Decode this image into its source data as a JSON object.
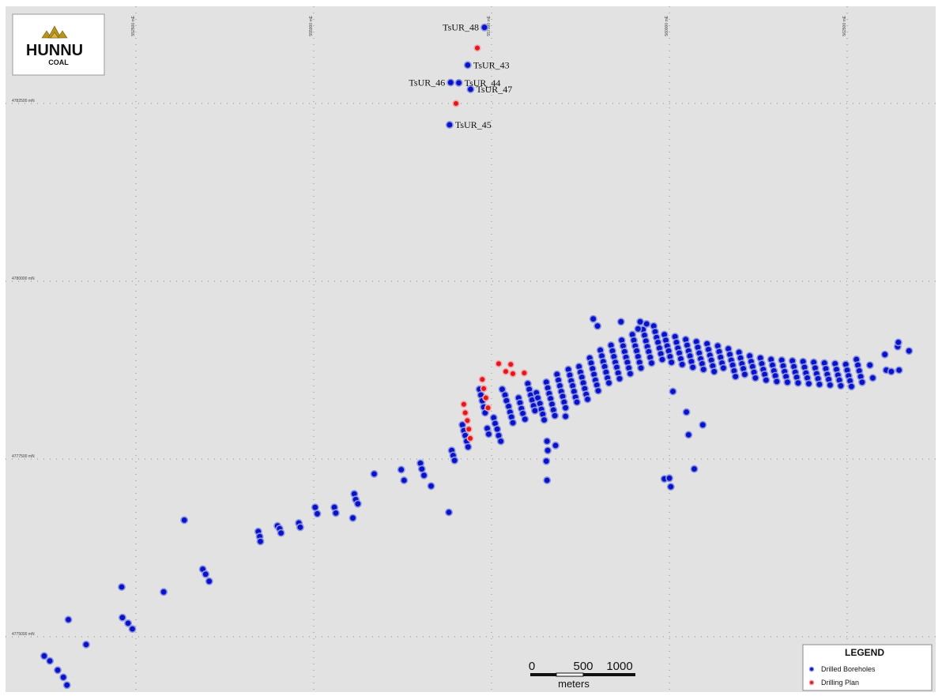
{
  "logo": {
    "word": "HUNNU",
    "sub": "COAL"
  },
  "grid": {
    "eastings": [
      "552500 mE",
      "555000 mE",
      "557500 mE",
      "560000 mE",
      "562500 mE"
    ],
    "northings": [
      "4782500 mN",
      "4780000 mN",
      "4777500 mN",
      "4775000 mN"
    ]
  },
  "labels": [
    {
      "text": "TsUR_48",
      "side": "left",
      "e": 557400,
      "n": 4783570
    },
    {
      "text": "TsUR_43",
      "side": "right",
      "e": 557165,
      "n": 4783040
    },
    {
      "text": "TsUR_44",
      "side": "right",
      "e": 557040,
      "n": 4782790
    },
    {
      "text": "TsUR_46",
      "side": "left",
      "e": 556925,
      "n": 4782795
    },
    {
      "text": "TsUR_47",
      "side": "right",
      "e": 557205,
      "n": 4782700
    },
    {
      "text": "TsUR_45",
      "side": "right",
      "e": 556910,
      "n": 4782200
    }
  ],
  "scale_bar": {
    "ticks": [
      "0",
      "500",
      "1000"
    ],
    "unit": "meters"
  },
  "legend": {
    "title": "LEGEND",
    "items": [
      {
        "label": "Drilled Boreholes",
        "color": "#0a12c8"
      },
      {
        "label": "Drilling Plan",
        "color": "#e0181e"
      }
    ]
  },
  "colors": {
    "drilled": "#0a12c8",
    "planned": "#e0181e",
    "background": "#e2e2e2",
    "halo": "#7a84d8"
  },
  "boreholes": {
    "drilled": [
      [
        557400,
        4783570
      ],
      [
        557165,
        4783040
      ],
      [
        557040,
        4782790
      ],
      [
        556925,
        4782795
      ],
      [
        557205,
        4782700
      ],
      [
        556910,
        4782200
      ],
      [
        551210,
        4774730
      ],
      [
        551290,
        4774660
      ],
      [
        551400,
        4774530
      ],
      [
        551480,
        4774430
      ],
      [
        551530,
        4774320
      ],
      [
        551550,
        4775240
      ],
      [
        551800,
        4774890
      ],
      [
        552300,
        4775700
      ],
      [
        552310,
        4775270
      ],
      [
        552390,
        4775190
      ],
      [
        552450,
        4775110
      ],
      [
        552890,
        4775630
      ],
      [
        553180,
        4776640
      ],
      [
        553440,
        4775950
      ],
      [
        553480,
        4775880
      ],
      [
        553530,
        4775780
      ],
      [
        554220,
        4776480
      ],
      [
        554240,
        4776410
      ],
      [
        554250,
        4776340
      ],
      [
        554490,
        4776560
      ],
      [
        554520,
        4776520
      ],
      [
        554540,
        4776460
      ],
      [
        554790,
        4776600
      ],
      [
        554810,
        4776540
      ],
      [
        555020,
        4776820
      ],
      [
        555050,
        4776730
      ],
      [
        555290,
        4776820
      ],
      [
        555310,
        4776740
      ],
      [
        555550,
        4776670
      ],
      [
        555570,
        4777010
      ],
      [
        555590,
        4776930
      ],
      [
        555620,
        4776870
      ],
      [
        555850,
        4777290
      ],
      [
        556230,
        4777350
      ],
      [
        556270,
        4777200
      ],
      [
        556500,
        4777440
      ],
      [
        556520,
        4777360
      ],
      [
        556550,
        4777270
      ],
      [
        556650,
        4777120
      ],
      [
        556900,
        4776750
      ],
      [
        556940,
        4777620
      ],
      [
        556960,
        4777550
      ],
      [
        556980,
        4777480
      ],
      [
        557090,
        4777980
      ],
      [
        557110,
        4777900
      ],
      [
        557130,
        4777830
      ],
      [
        557150,
        4777750
      ],
      [
        557170,
        4777670
      ],
      [
        557330,
        4778480
      ],
      [
        557350,
        4778400
      ],
      [
        557370,
        4778320
      ],
      [
        557390,
        4778230
      ],
      [
        557410,
        4778150
      ],
      [
        557440,
        4777930
      ],
      [
        557460,
        4777850
      ],
      [
        557530,
        4778080
      ],
      [
        557550,
        4778000
      ],
      [
        557580,
        4777920
      ],
      [
        557600,
        4777830
      ],
      [
        557630,
        4777750
      ],
      [
        557650,
        4778480
      ],
      [
        557690,
        4778400
      ],
      [
        557710,
        4778320
      ],
      [
        557740,
        4778240
      ],
      [
        557760,
        4778160
      ],
      [
        557780,
        4778090
      ],
      [
        557800,
        4778010
      ],
      [
        557880,
        4778360
      ],
      [
        557900,
        4778290
      ],
      [
        557920,
        4778210
      ],
      [
        557940,
        4778140
      ],
      [
        557970,
        4778060
      ],
      [
        558010,
        4778560
      ],
      [
        558030,
        4778480
      ],
      [
        558050,
        4778400
      ],
      [
        558070,
        4778330
      ],
      [
        558090,
        4778250
      ],
      [
        558110,
        4778180
      ],
      [
        558130,
        4778430
      ],
      [
        558150,
        4778360
      ],
      [
        558180,
        4778280
      ],
      [
        558200,
        4778200
      ],
      [
        558220,
        4778130
      ],
      [
        558240,
        4778050
      ],
      [
        558270,
        4778580
      ],
      [
        558290,
        4778500
      ],
      [
        558310,
        4778420
      ],
      [
        558330,
        4778350
      ],
      [
        558350,
        4778270
      ],
      [
        558370,
        4778190
      ],
      [
        558390,
        4778110
      ],
      [
        558420,
        4778690
      ],
      [
        558440,
        4778610
      ],
      [
        558460,
        4778530
      ],
      [
        558480,
        4778450
      ],
      [
        558500,
        4778380
      ],
      [
        558520,
        4778300
      ],
      [
        558540,
        4778220
      ],
      [
        558580,
        4778760
      ],
      [
        558600,
        4778680
      ],
      [
        558620,
        4778600
      ],
      [
        558640,
        4778530
      ],
      [
        558660,
        4778450
      ],
      [
        558680,
        4778370
      ],
      [
        558700,
        4778300
      ],
      [
        558730,
        4778800
      ],
      [
        558750,
        4778720
      ],
      [
        558770,
        4778650
      ],
      [
        558790,
        4778570
      ],
      [
        558810,
        4778490
      ],
      [
        558830,
        4778410
      ],
      [
        558850,
        4778340
      ],
      [
        558880,
        4778920
      ],
      [
        558900,
        4778850
      ],
      [
        558920,
        4778770
      ],
      [
        558940,
        4778690
      ],
      [
        558960,
        4778610
      ],
      [
        558980,
        4778540
      ],
      [
        559000,
        4778460
      ],
      [
        559030,
        4779030
      ],
      [
        559050,
        4778950
      ],
      [
        559070,
        4778870
      ],
      [
        559090,
        4778800
      ],
      [
        559110,
        4778720
      ],
      [
        559130,
        4778640
      ],
      [
        559150,
        4778570
      ],
      [
        559180,
        4779100
      ],
      [
        559200,
        4779020
      ],
      [
        559220,
        4778940
      ],
      [
        559240,
        4778860
      ],
      [
        559260,
        4778790
      ],
      [
        559280,
        4778710
      ],
      [
        559300,
        4778630
      ],
      [
        559330,
        4779170
      ],
      [
        559350,
        4779090
      ],
      [
        559370,
        4779010
      ],
      [
        559390,
        4778930
      ],
      [
        559410,
        4778860
      ],
      [
        559430,
        4778780
      ],
      [
        559450,
        4778700
      ],
      [
        559480,
        4779250
      ],
      [
        559500,
        4779170
      ],
      [
        559520,
        4779090
      ],
      [
        559540,
        4779020
      ],
      [
        559560,
        4778940
      ],
      [
        559580,
        4778860
      ],
      [
        559600,
        4778780
      ],
      [
        559630,
        4779320
      ],
      [
        559650,
        4779240
      ],
      [
        559670,
        4779160
      ],
      [
        559690,
        4779080
      ],
      [
        559710,
        4779010
      ],
      [
        559730,
        4778930
      ],
      [
        559750,
        4778850
      ],
      [
        559780,
        4779370
      ],
      [
        559800,
        4779290
      ],
      [
        559820,
        4779210
      ],
      [
        559840,
        4779140
      ],
      [
        559860,
        4779060
      ],
      [
        559880,
        4778980
      ],
      [
        559900,
        4778900
      ],
      [
        559930,
        4779250
      ],
      [
        559950,
        4779170
      ],
      [
        559970,
        4779090
      ],
      [
        559990,
        4779020
      ],
      [
        560010,
        4778940
      ],
      [
        560030,
        4778860
      ],
      [
        560080,
        4779220
      ],
      [
        560100,
        4779140
      ],
      [
        560120,
        4779060
      ],
      [
        560140,
        4778990
      ],
      [
        560160,
        4778910
      ],
      [
        560180,
        4778830
      ],
      [
        560230,
        4779180
      ],
      [
        560250,
        4779100
      ],
      [
        560270,
        4779020
      ],
      [
        560290,
        4778950
      ],
      [
        560310,
        4778870
      ],
      [
        560330,
        4778790
      ],
      [
        560380,
        4779150
      ],
      [
        560400,
        4779070
      ],
      [
        560420,
        4778990
      ],
      [
        560440,
        4778910
      ],
      [
        560460,
        4778840
      ],
      [
        560480,
        4778760
      ],
      [
        560530,
        4779120
      ],
      [
        560550,
        4779040
      ],
      [
        560570,
        4778960
      ],
      [
        560590,
        4778890
      ],
      [
        560610,
        4778810
      ],
      [
        560630,
        4778730
      ],
      [
        560680,
        4779090
      ],
      [
        560700,
        4779010
      ],
      [
        560720,
        4778930
      ],
      [
        560740,
        4778850
      ],
      [
        560760,
        4778780
      ],
      [
        560830,
        4779050
      ],
      [
        560850,
        4778970
      ],
      [
        560870,
        4778890
      ],
      [
        560890,
        4778820
      ],
      [
        560910,
        4778740
      ],
      [
        560930,
        4778660
      ],
      [
        560980,
        4779000
      ],
      [
        561000,
        4778920
      ],
      [
        561020,
        4778840
      ],
      [
        561040,
        4778770
      ],
      [
        561060,
        4778690
      ],
      [
        561130,
        4778950
      ],
      [
        561150,
        4778870
      ],
      [
        561170,
        4778800
      ],
      [
        561190,
        4778720
      ],
      [
        561210,
        4778640
      ],
      [
        561280,
        4778920
      ],
      [
        561300,
        4778840
      ],
      [
        561320,
        4778760
      ],
      [
        561340,
        4778690
      ],
      [
        561360,
        4778610
      ],
      [
        561430,
        4778900
      ],
      [
        561450,
        4778820
      ],
      [
        561470,
        4778740
      ],
      [
        561490,
        4778670
      ],
      [
        561510,
        4778590
      ],
      [
        561580,
        4778890
      ],
      [
        561600,
        4778810
      ],
      [
        561620,
        4778730
      ],
      [
        561640,
        4778660
      ],
      [
        561660,
        4778580
      ],
      [
        561730,
        4778880
      ],
      [
        561750,
        4778800
      ],
      [
        561770,
        4778720
      ],
      [
        561790,
        4778650
      ],
      [
        561810,
        4778570
      ],
      [
        561880,
        4778870
      ],
      [
        561900,
        4778790
      ],
      [
        561920,
        4778710
      ],
      [
        561940,
        4778640
      ],
      [
        561960,
        4778560
      ],
      [
        562030,
        4778860
      ],
      [
        562050,
        4778780
      ],
      [
        562070,
        4778700
      ],
      [
        562090,
        4778630
      ],
      [
        562110,
        4778550
      ],
      [
        562180,
        4778850
      ],
      [
        562200,
        4778770
      ],
      [
        562220,
        4778690
      ],
      [
        562240,
        4778620
      ],
      [
        562260,
        4778540
      ],
      [
        562330,
        4778840
      ],
      [
        562350,
        4778760
      ],
      [
        562370,
        4778680
      ],
      [
        562390,
        4778610
      ],
      [
        562410,
        4778530
      ],
      [
        562480,
        4778830
      ],
      [
        562500,
        4778750
      ],
      [
        562520,
        4778670
      ],
      [
        562540,
        4778600
      ],
      [
        562560,
        4778520
      ],
      [
        562630,
        4778900
      ],
      [
        562650,
        4778820
      ],
      [
        562670,
        4778740
      ],
      [
        562690,
        4778660
      ],
      [
        562710,
        4778580
      ],
      [
        562820,
        4778820
      ],
      [
        562860,
        4778640
      ],
      [
        563030,
        4778970
      ],
      [
        563050,
        4778750
      ],
      [
        563120,
        4778730
      ],
      [
        563210,
        4779080
      ],
      [
        563220,
        4779140
      ],
      [
        563230,
        4778750
      ],
      [
        563370,
        4779020
      ],
      [
        558930,
        4779470
      ],
      [
        558990,
        4779370
      ],
      [
        559320,
        4779430
      ],
      [
        559590,
        4779430
      ],
      [
        559560,
        4779330
      ],
      [
        559680,
        4779400
      ],
      [
        560050,
        4778450
      ],
      [
        560240,
        4778160
      ],
      [
        560270,
        4777840
      ],
      [
        560470,
        4777980
      ],
      [
        558540,
        4778100
      ],
      [
        558280,
        4777750
      ],
      [
        558400,
        4777690
      ],
      [
        558290,
        4777620
      ],
      [
        558270,
        4777470
      ],
      [
        558280,
        4777200
      ],
      [
        559930,
        4777220
      ],
      [
        560000,
        4777230
      ],
      [
        560020,
        4777110
      ],
      [
        560350,
        4777360
      ]
    ],
    "planned": [
      [
        557300,
        4783280
      ],
      [
        557000,
        4782500
      ],
      [
        557110,
        4778270
      ],
      [
        557130,
        4778150
      ],
      [
        557160,
        4778040
      ],
      [
        557180,
        4777920
      ],
      [
        557200,
        4777790
      ],
      [
        557370,
        4778620
      ],
      [
        557390,
        4778490
      ],
      [
        557420,
        4778360
      ],
      [
        557450,
        4778220
      ],
      [
        557600,
        4778840
      ],
      [
        557700,
        4778730
      ],
      [
        557770,
        4778830
      ],
      [
        557800,
        4778700
      ],
      [
        557960,
        4778710
      ]
    ]
  }
}
